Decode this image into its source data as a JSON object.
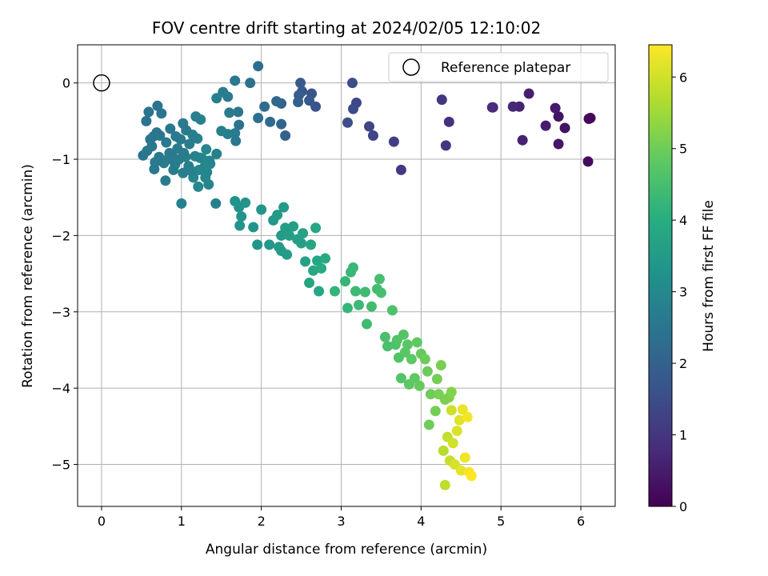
{
  "chart_data": {
    "type": "scatter",
    "title": "FOV centre drift starting at 2024/02/05 12:10:02",
    "xlabel": "Angular distance from reference (arcmin)",
    "ylabel": "Rotation from reference (arcmin)",
    "xlim": [
      -0.3,
      6.43
    ],
    "ylim": [
      -5.55,
      0.5
    ],
    "xticks": [
      0,
      1,
      2,
      3,
      4,
      5,
      6
    ],
    "yticks": [
      0,
      -1,
      -2,
      -3,
      -4,
      -5
    ],
    "xtick_labels": [
      "0",
      "1",
      "2",
      "3",
      "4",
      "5",
      "6"
    ],
    "ytick_labels": [
      "0",
      "−1",
      "−2",
      "−3",
      "−4",
      "−5"
    ],
    "grid": true,
    "colormap": "viridis",
    "colorbar": {
      "label": "Hours from first FF file",
      "range": [
        0,
        6.45
      ],
      "ticks": [
        0,
        1,
        2,
        3,
        4,
        5,
        6
      ],
      "tick_labels": [
        "0",
        "1",
        "2",
        "3",
        "4",
        "5",
        "6"
      ]
    },
    "legend": {
      "position": "top-right",
      "entries": [
        {
          "label": "Reference platepar",
          "marker": "open-circle"
        }
      ]
    },
    "reference_point": {
      "x": 0,
      "y": 0
    },
    "series": [
      {
        "points": [
          [
            6.12,
            -0.46,
            0.1
          ],
          [
            6.1,
            -0.47,
            0.15
          ],
          [
            6.09,
            -1.03,
            0.2
          ],
          [
            5.8,
            -0.59,
            0.3
          ],
          [
            5.72,
            -0.44,
            0.35
          ],
          [
            5.72,
            -0.8,
            0.4
          ],
          [
            5.68,
            -0.33,
            0.45
          ],
          [
            5.56,
            -0.56,
            0.5
          ],
          [
            5.35,
            -0.14,
            0.55
          ],
          [
            5.27,
            -0.75,
            0.6
          ],
          [
            5.23,
            -0.31,
            0.65
          ],
          [
            5.15,
            -0.31,
            0.7
          ],
          [
            4.9,
            -0.32,
            0.75
          ],
          [
            4.89,
            -0.32,
            0.8
          ],
          [
            4.35,
            -0.51,
            0.9
          ],
          [
            4.31,
            -0.82,
            0.95
          ],
          [
            4.26,
            -0.22,
            1.0
          ],
          [
            3.75,
            -1.14,
            1.1
          ],
          [
            3.66,
            -0.77,
            1.2
          ],
          [
            3.4,
            -0.69,
            1.3
          ],
          [
            3.35,
            -0.57,
            1.35
          ],
          [
            3.19,
            -0.26,
            1.4
          ],
          [
            3.15,
            -0.34,
            1.45
          ],
          [
            3.14,
            0.0,
            1.5
          ],
          [
            3.08,
            -0.52,
            1.55
          ],
          [
            2.68,
            -0.31,
            1.65
          ],
          [
            2.63,
            -0.14,
            1.7
          ],
          [
            2.6,
            -0.23,
            1.75
          ],
          [
            2.51,
            -0.11,
            1.8
          ],
          [
            2.49,
            0.0,
            1.85
          ],
          [
            2.47,
            -0.16,
            1.9
          ],
          [
            2.46,
            -0.25,
            1.95
          ],
          [
            2.3,
            -0.69,
            2.0
          ],
          [
            2.25,
            -0.27,
            2.05
          ],
          [
            2.25,
            -0.54,
            2.1
          ],
          [
            2.19,
            -0.24,
            2.15
          ],
          [
            2.11,
            -0.51,
            2.2
          ],
          [
            2.04,
            -0.31,
            2.25
          ],
          [
            1.96,
            0.22,
            2.3
          ],
          [
            1.96,
            -0.46,
            2.35
          ],
          [
            1.86,
            0.0,
            2.4
          ],
          [
            1.72,
            -0.55,
            2.45
          ],
          [
            1.71,
            -0.38,
            2.5
          ],
          [
            1.68,
            -0.76,
            2.55
          ],
          [
            1.67,
            0.03,
            2.6
          ],
          [
            1.67,
            -0.66,
            2.6
          ],
          [
            1.6,
            -0.39,
            2.65
          ],
          [
            1.58,
            -0.18,
            2.65
          ],
          [
            1.58,
            -0.67,
            2.7
          ],
          [
            1.52,
            -0.12,
            2.7
          ],
          [
            1.5,
            -0.63,
            2.75
          ],
          [
            1.44,
            -0.2,
            2.75
          ],
          [
            1.44,
            -0.93,
            2.8
          ],
          [
            1.43,
            -1.58,
            2.8
          ],
          [
            1.36,
            -1.06,
            2.85
          ],
          [
            1.35,
            -1.02,
            2.85
          ],
          [
            1.34,
            -1.33,
            2.9
          ],
          [
            1.32,
            -1.17,
            2.9
          ],
          [
            1.31,
            -0.87,
            2.95
          ],
          [
            1.3,
            -1.24,
            2.95
          ],
          [
            1.29,
            -1.1,
            3.0
          ],
          [
            1.26,
            -0.99,
            3.0
          ],
          [
            1.24,
            -0.48,
            2.85
          ],
          [
            1.23,
            -0.98,
            2.9
          ],
          [
            1.22,
            -1.14,
            2.95
          ],
          [
            1.21,
            -1.36,
            3.0
          ],
          [
            1.2,
            -0.73,
            2.8
          ],
          [
            1.18,
            -0.44,
            2.75
          ],
          [
            1.17,
            -0.96,
            2.85
          ],
          [
            1.15,
            -1.24,
            2.9
          ],
          [
            1.14,
            -0.68,
            2.75
          ],
          [
            1.12,
            -1.15,
            2.8
          ],
          [
            1.1,
            -0.8,
            2.7
          ],
          [
            1.09,
            -1.09,
            2.75
          ],
          [
            1.06,
            -0.62,
            2.65
          ],
          [
            1.05,
            -0.97,
            2.7
          ],
          [
            1.03,
            -0.92,
            2.7
          ],
          [
            1.02,
            -0.53,
            2.6
          ],
          [
            1.02,
            -1.18,
            2.75
          ],
          [
            1.0,
            -1.58,
            2.8
          ],
          [
            0.99,
            -0.74,
            2.65
          ],
          [
            0.97,
            -1.0,
            2.7
          ],
          [
            0.95,
            -0.86,
            2.65
          ],
          [
            0.93,
            -0.7,
            2.6
          ],
          [
            0.92,
            -1.07,
            2.7
          ],
          [
            0.9,
            -1.14,
            2.7
          ],
          [
            0.88,
            -0.95,
            2.65
          ],
          [
            0.86,
            -0.6,
            2.55
          ],
          [
            0.85,
            -0.92,
            2.6
          ],
          [
            0.83,
            -1.0,
            2.65
          ],
          [
            0.81,
            -0.78,
            2.6
          ],
          [
            0.8,
            -1.28,
            2.7
          ],
          [
            0.78,
            -1.05,
            2.65
          ],
          [
            0.75,
            -0.4,
            2.5
          ],
          [
            0.73,
            -0.69,
            2.55
          ],
          [
            0.72,
            -0.97,
            2.6
          ],
          [
            0.7,
            -0.3,
            2.45
          ],
          [
            0.69,
            -0.65,
            2.5
          ],
          [
            0.67,
            -1.04,
            2.6
          ],
          [
            0.66,
            -1.13,
            2.6
          ],
          [
            0.65,
            -0.7,
            2.55
          ],
          [
            0.63,
            -0.83,
            2.55
          ],
          [
            0.61,
            -0.74,
            2.5
          ],
          [
            0.59,
            -0.38,
            2.45
          ],
          [
            0.57,
            -0.89,
            2.55
          ],
          [
            0.56,
            -0.5,
            2.45
          ],
          [
            0.52,
            -0.95,
            2.5
          ],
          [
            1.67,
            -1.55,
            3.25
          ],
          [
            1.72,
            -1.63,
            3.25
          ],
          [
            1.73,
            -1.87,
            3.3
          ],
          [
            1.75,
            -1.75,
            3.3
          ],
          [
            1.8,
            -1.57,
            3.3
          ],
          [
            1.9,
            -1.89,
            3.35
          ],
          [
            1.95,
            -2.12,
            3.35
          ],
          [
            2.0,
            -1.66,
            3.35
          ],
          [
            2.1,
            -2.12,
            3.4
          ],
          [
            2.15,
            -1.8,
            3.4
          ],
          [
            2.2,
            -1.73,
            3.45
          ],
          [
            2.22,
            -2.15,
            3.45
          ],
          [
            2.25,
            -2.0,
            3.5
          ],
          [
            2.25,
            -2.2,
            3.5
          ],
          [
            2.28,
            -1.63,
            3.5
          ],
          [
            2.3,
            -1.9,
            3.55
          ],
          [
            2.32,
            -2.25,
            3.55
          ],
          [
            2.35,
            -2.0,
            3.6
          ],
          [
            2.4,
            -1.88,
            3.6
          ],
          [
            2.45,
            -2.05,
            3.65
          ],
          [
            2.5,
            -2.1,
            3.65
          ],
          [
            2.52,
            -1.97,
            3.7
          ],
          [
            2.55,
            -2.34,
            3.7
          ],
          [
            2.6,
            -2.62,
            3.75
          ],
          [
            2.62,
            -2.12,
            3.75
          ],
          [
            2.65,
            -2.46,
            3.8
          ],
          [
            2.68,
            -1.9,
            3.8
          ],
          [
            2.7,
            -2.33,
            3.85
          ],
          [
            2.72,
            -2.73,
            3.85
          ],
          [
            2.75,
            -2.43,
            3.9
          ],
          [
            2.8,
            -2.3,
            3.9
          ],
          [
            2.92,
            -2.73,
            4.2
          ],
          [
            3.05,
            -2.6,
            4.25
          ],
          [
            3.08,
            -2.95,
            4.25
          ],
          [
            3.12,
            -2.48,
            4.3
          ],
          [
            3.15,
            -2.42,
            4.3
          ],
          [
            3.18,
            -2.73,
            4.35
          ],
          [
            3.22,
            -2.91,
            4.35
          ],
          [
            3.3,
            -2.74,
            4.4
          ],
          [
            3.32,
            -3.16,
            4.4
          ],
          [
            3.38,
            -2.93,
            4.45
          ],
          [
            3.45,
            -2.7,
            4.45
          ],
          [
            3.48,
            -2.57,
            4.5
          ],
          [
            3.5,
            -2.75,
            4.5
          ],
          [
            3.55,
            -3.33,
            4.55
          ],
          [
            3.58,
            -3.45,
            4.55
          ],
          [
            3.64,
            -2.98,
            4.6
          ],
          [
            3.68,
            -3.43,
            4.6
          ],
          [
            3.7,
            -3.37,
            4.65
          ],
          [
            3.72,
            -3.6,
            4.65
          ],
          [
            3.75,
            -3.87,
            4.7
          ],
          [
            3.78,
            -3.3,
            4.7
          ],
          [
            3.8,
            -3.53,
            4.75
          ],
          [
            3.83,
            -3.43,
            4.75
          ],
          [
            3.85,
            -3.95,
            4.8
          ],
          [
            3.88,
            -3.62,
            4.8
          ],
          [
            3.92,
            -3.87,
            4.85
          ],
          [
            3.95,
            -3.4,
            4.85
          ],
          [
            3.98,
            -3.97,
            4.9
          ],
          [
            4.0,
            -3.55,
            4.9
          ],
          [
            4.05,
            -3.62,
            4.95
          ],
          [
            4.08,
            -3.78,
            4.95
          ],
          [
            4.1,
            -4.48,
            5.0
          ],
          [
            4.12,
            -4.08,
            5.0
          ],
          [
            4.18,
            -4.3,
            5.05
          ],
          [
            4.2,
            -3.88,
            5.05
          ],
          [
            4.22,
            -4.08,
            5.1
          ],
          [
            4.25,
            -3.7,
            5.1
          ],
          [
            4.3,
            -4.15,
            5.15
          ],
          [
            4.35,
            -4.12,
            5.15
          ],
          [
            4.38,
            -4.05,
            5.2
          ],
          [
            4.28,
            -4.82,
            5.75
          ],
          [
            4.3,
            -5.27,
            5.8
          ],
          [
            4.33,
            -4.64,
            5.85
          ],
          [
            4.36,
            -4.95,
            5.9
          ],
          [
            4.38,
            -4.29,
            5.95
          ],
          [
            4.4,
            -4.72,
            6.0
          ],
          [
            4.42,
            -5.0,
            6.05
          ],
          [
            4.45,
            -4.56,
            6.1
          ],
          [
            4.48,
            -4.42,
            6.15
          ],
          [
            4.5,
            -5.08,
            6.2
          ],
          [
            4.52,
            -4.28,
            6.25
          ],
          [
            4.55,
            -4.91,
            6.3
          ],
          [
            4.58,
            -4.38,
            6.35
          ],
          [
            4.6,
            -5.1,
            6.4
          ],
          [
            4.63,
            -5.15,
            6.45
          ]
        ]
      }
    ]
  }
}
